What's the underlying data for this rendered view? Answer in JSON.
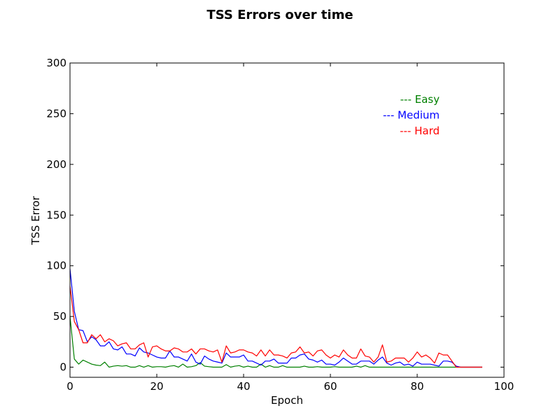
{
  "chart_data": {
    "type": "line",
    "title": "TSS Errors over time",
    "xlabel": "Epoch",
    "ylabel": "TSS Error",
    "xlim": [
      0,
      100
    ],
    "ylim": [
      -10,
      300
    ],
    "xticks": [
      "0",
      "20",
      "40",
      "60",
      "80",
      "100"
    ],
    "yticks": [
      "0",
      "50",
      "100",
      "150",
      "200",
      "250",
      "300"
    ],
    "xtick_values": [
      0,
      20,
      40,
      60,
      80,
      100
    ],
    "ytick_values": [
      0,
      50,
      100,
      150,
      200,
      250,
      300
    ],
    "grid": false,
    "legend_position": "top-right",
    "legend": [
      {
        "label": "--- Easy",
        "color": "#008000"
      },
      {
        "label": "--- Medium",
        "color": "#0000ff"
      },
      {
        "label": "--- Hard",
        "color": "#ff0000"
      }
    ],
    "series": [
      {
        "name": "Easy",
        "color": "#008000",
        "values": [
          50,
          8,
          3,
          7,
          5,
          3,
          2,
          1.5,
          5,
          0,
          1,
          1.5,
          1,
          1.5,
          0,
          0,
          1.5,
          0,
          1.5,
          0,
          0.5,
          0.5,
          0,
          1,
          1.5,
          0,
          3,
          0,
          0.5,
          1.5,
          4.5,
          1,
          0.5,
          0,
          0,
          0,
          2.5,
          0,
          1,
          1.5,
          0,
          1,
          0,
          0,
          3,
          0,
          1.5,
          0,
          0,
          1.5,
          0,
          0,
          0,
          0,
          1,
          0,
          0,
          0.5,
          0,
          0,
          0,
          0.5,
          0,
          0,
          0,
          0,
          1,
          0,
          1.5,
          0,
          0,
          0,
          0,
          0,
          0,
          0,
          0,
          0,
          0,
          0,
          0,
          0,
          0,
          0,
          0,
          0,
          0,
          0,
          0,
          0,
          0,
          0,
          0,
          0,
          0,
          0
        ]
      },
      {
        "name": "Medium",
        "color": "#0000ff",
        "values": [
          97,
          55,
          37,
          36,
          25,
          30,
          27,
          21,
          21,
          25,
          18,
          17,
          20,
          13,
          13,
          11,
          19,
          15,
          14,
          12,
          10,
          9,
          9,
          16,
          10,
          10,
          8,
          6,
          13,
          5,
          3,
          11,
          8,
          6,
          5,
          4,
          14,
          10,
          10,
          10,
          12,
          6,
          6,
          4,
          2,
          6,
          6,
          8,
          4,
          4,
          4,
          9,
          9,
          12,
          13,
          8,
          7,
          5,
          7,
          3,
          3,
          2,
          5,
          9,
          6,
          3,
          3,
          6,
          6,
          6,
          3,
          7,
          10,
          4,
          2,
          4,
          5,
          2,
          3,
          1,
          5,
          3,
          3,
          3,
          2,
          1,
          6,
          6,
          5,
          1,
          0,
          0,
          0,
          0,
          0,
          0
        ]
      },
      {
        "name": "Hard",
        "color": "#ff0000",
        "values": [
          80,
          45,
          37,
          24,
          24,
          32,
          28,
          32,
          25,
          28,
          26,
          21,
          23,
          24,
          18,
          18,
          22,
          24,
          10,
          20,
          21,
          18,
          16,
          16,
          19,
          18,
          15,
          15,
          18,
          13,
          18,
          18,
          16,
          15,
          17,
          5,
          21,
          14,
          15,
          17,
          17,
          15,
          14,
          11,
          17,
          11,
          17,
          12,
          12,
          11,
          9,
          14,
          15,
          20,
          14,
          15,
          11,
          16,
          17,
          12,
          9,
          12,
          10,
          17,
          12,
          9,
          9,
          18,
          11,
          10,
          5,
          10,
          22,
          5,
          6,
          9,
          9,
          9,
          5,
          9,
          15,
          10,
          12,
          9,
          4,
          14,
          12,
          12,
          6,
          0,
          0,
          0,
          0,
          0,
          0,
          0
        ]
      }
    ]
  }
}
